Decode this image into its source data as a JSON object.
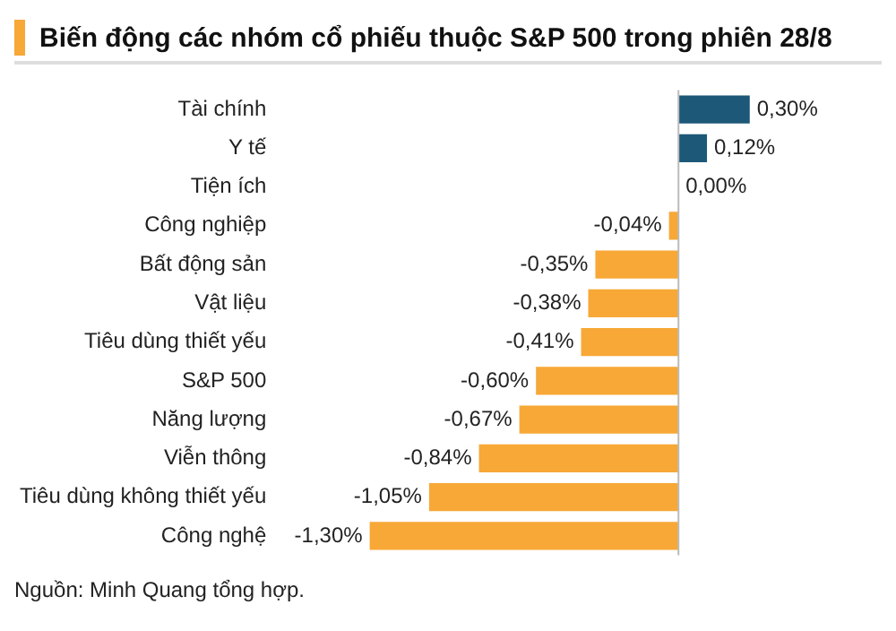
{
  "chart_data": {
    "type": "bar",
    "orientation": "horizontal",
    "title": "Biến động các nhóm cổ phiếu thuộc S&P 500 trong phiên 28/8",
    "categories": [
      "Tài chính",
      "Y tế",
      "Tiện ích",
      "Công nghiệp",
      "Bất động sản",
      "Vật liệu",
      "Tiêu dùng thiết yếu",
      "S&P 500",
      "Năng lượng",
      "Viễn thông",
      "Tiêu dùng không thiết yếu",
      "Công nghệ"
    ],
    "values": [
      0.3,
      0.12,
      0.0,
      -0.04,
      -0.35,
      -0.38,
      -0.41,
      -0.6,
      -0.67,
      -0.84,
      -1.05,
      -1.3
    ],
    "colors": [
      "#1d5878",
      "#1d5878",
      "#1d5878",
      "#f7a836",
      "#f7a836",
      "#f7a836",
      "#f7a836",
      "#f7a836",
      "#f7a836",
      "#f7a836",
      "#f7a836",
      "#f7a836"
    ],
    "value_labels": [
      "0,30%",
      "0,12%",
      "0,00%",
      "-0,04%",
      "-0,35%",
      "-0,38%",
      "-0,41%",
      "-0,60%",
      "-0,67%",
      "-0,84%",
      "-1,05%",
      "-1,30%"
    ],
    "annotations": [
      "Nguồn: Minh Quang tổng hợp."
    ]
  }
}
